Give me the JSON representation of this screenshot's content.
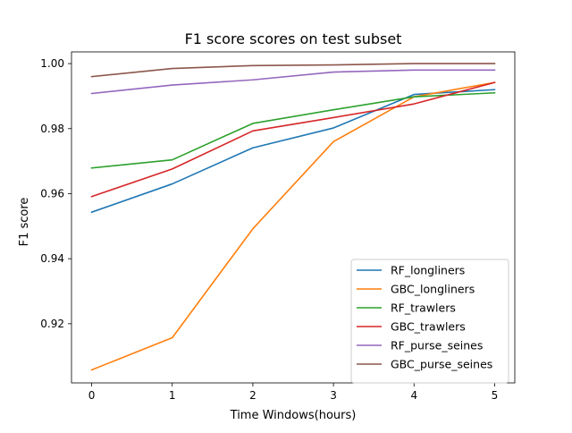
{
  "chart_data": {
    "type": "line",
    "title": "F1 score scores on test subset",
    "xlabel": "Time Windows(hours)",
    "ylabel": "F1 score",
    "x": [
      0,
      1,
      2,
      3,
      4,
      5
    ],
    "xlim": [
      -0.25,
      5.25
    ],
    "ylim": [
      0.9018,
      1.0036
    ],
    "xticks": [
      0,
      1,
      2,
      3,
      4,
      5
    ],
    "yticks": [
      0.92,
      0.94,
      0.96,
      0.98,
      1.0
    ],
    "ytick_labels": [
      "0.92",
      "0.94",
      "0.96",
      "0.98",
      "1.00"
    ],
    "grid": false,
    "legend_position": "lower-right",
    "series": [
      {
        "name": "RF_longliners",
        "color": "#1f77b4",
        "values": [
          0.9543,
          0.963,
          0.9741,
          0.9802,
          0.9905,
          0.992
        ]
      },
      {
        "name": "GBC_longliners",
        "color": "#ff7f0e",
        "values": [
          0.9058,
          0.9157,
          0.9492,
          0.976,
          0.9898,
          0.9942
        ]
      },
      {
        "name": "RF_trawlers",
        "color": "#2ca02c",
        "values": [
          0.9679,
          0.9704,
          0.9816,
          0.9858,
          0.9898,
          0.991
        ]
      },
      {
        "name": "GBC_trawlers",
        "color": "#d62728",
        "values": [
          0.9591,
          0.9676,
          0.9793,
          0.9834,
          0.9876,
          0.9942
        ]
      },
      {
        "name": "RF_purse_seines",
        "color": "#9467bd",
        "values": [
          0.9908,
          0.9934,
          0.995,
          0.9974,
          0.998,
          0.998
        ]
      },
      {
        "name": "GBC_purse_seines",
        "color": "#8c564b",
        "values": [
          0.996,
          0.9985,
          0.9994,
          0.9996,
          1.0,
          1.0
        ]
      }
    ]
  }
}
